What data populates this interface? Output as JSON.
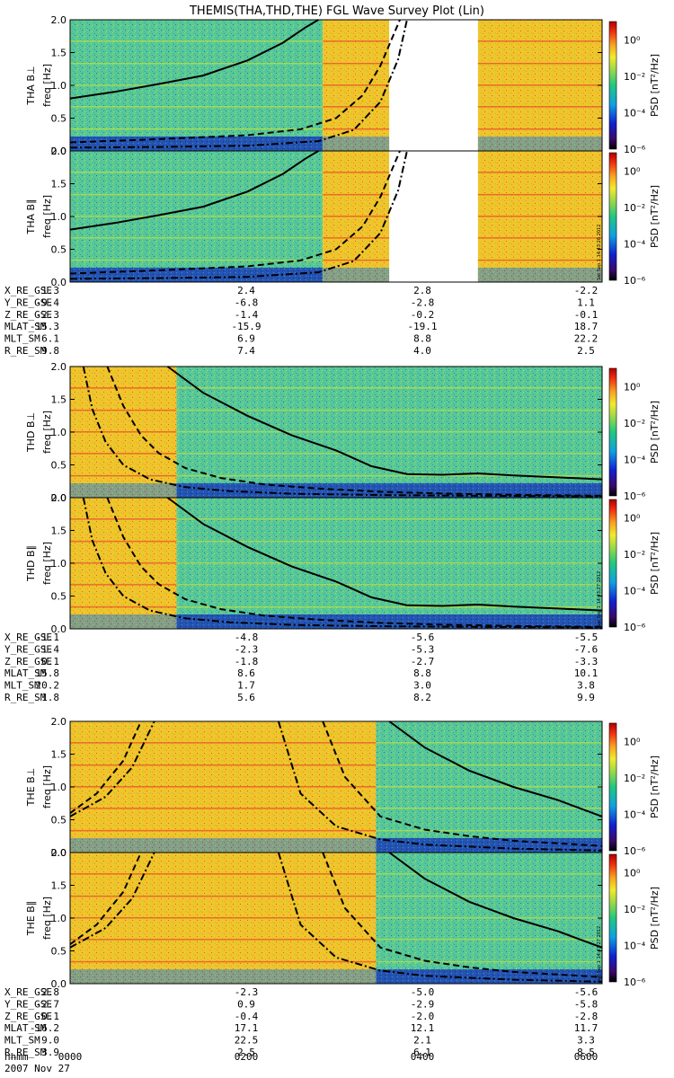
{
  "title": "THEMIS(THA,THD,THE) FGL Wave Survey Plot (Lin)",
  "colorbar": {
    "label": "PSD [nT²/Hz]",
    "ticks": [
      "10⁰",
      "10⁻²",
      "10⁻⁴",
      "10⁻⁶"
    ]
  },
  "footer": {
    "time_row_label": "hhmm",
    "times": [
      "0000",
      "0200",
      "0400",
      "0600"
    ],
    "date": "2007 Nov 27"
  },
  "chart_data": {
    "type": "heatmap",
    "x": {
      "label": "hhmm",
      "ticks": [
        "0000",
        "0200",
        "0400",
        "0600"
      ],
      "range_hours": [
        0,
        6
      ]
    },
    "y": {
      "label": "freq [Hz]",
      "range": [
        0,
        2
      ],
      "ticks": [
        "0.0",
        "0.5",
        "1.0",
        "1.5",
        "2.0"
      ]
    },
    "z": {
      "label": "PSD [nT²/Hz]",
      "scale": "log",
      "range_exp": [
        -6,
        1
      ]
    },
    "probes": [
      {
        "id": "THA",
        "panels": [
          {
            "label": "THA B⊥",
            "stamp": ""
          },
          {
            "label": "THA B∥",
            "stamp": "Sat Sep  1 14:43:26 2012"
          }
        ],
        "regions": [
          {
            "from": 0.0,
            "to": 2.85,
            "level": "green"
          },
          {
            "from": 2.85,
            "to": 3.6,
            "level": "yellow"
          },
          {
            "from": 3.6,
            "to": 4.6,
            "level": "none"
          },
          {
            "from": 4.6,
            "to": 6.0,
            "level": "yellow"
          }
        ],
        "curves": [
          {
            "style": "solid",
            "hours": [
              0.0,
              0.5,
              1.0,
              1.5,
              2.0,
              2.4,
              2.65,
              2.8
            ],
            "freq": [
              0.8,
              0.9,
              1.02,
              1.15,
              1.38,
              1.65,
              1.88,
              2.05
            ]
          },
          {
            "style": "dash",
            "hours": [
              0.0,
              1.0,
              2.0,
              2.6,
              3.0,
              3.3,
              3.5,
              3.72
            ],
            "freq": [
              0.13,
              0.18,
              0.24,
              0.33,
              0.5,
              0.85,
              1.3,
              2.05
            ]
          },
          {
            "style": "dashdot",
            "hours": [
              0.0,
              1.0,
              2.0,
              2.8,
              3.2,
              3.5,
              3.7,
              3.8
            ],
            "freq": [
              0.05,
              0.06,
              0.08,
              0.15,
              0.32,
              0.75,
              1.4,
              2.05
            ]
          }
        ],
        "ephemeris": [
          {
            "label": "X_RE_GSE",
            "values": [
              "1.3",
              "2.4",
              "2.8",
              "-2.2"
            ]
          },
          {
            "label": "Y_RE_GSE",
            "values": [
              "-9.4",
              "-6.8",
              "-2.8",
              "1.1"
            ]
          },
          {
            "label": "Z_RE_GSE",
            "values": [
              "-2.3",
              "-1.4",
              "-0.2",
              "-0.1"
            ]
          },
          {
            "label": "MLAT_SM",
            "values": [
              "-15.3",
              "-15.9",
              "-19.1",
              "18.7"
            ]
          },
          {
            "label": "MLT_SM",
            "values": [
              "6.1",
              "6.9",
              "8.8",
              "22.2"
            ]
          },
          {
            "label": "R_RE_SM",
            "values": [
              "9.8",
              "7.4",
              "4.0",
              "2.5"
            ]
          }
        ]
      },
      {
        "id": "THD",
        "panels": [
          {
            "label": "THD B⊥",
            "stamp": ""
          },
          {
            "label": "THD B∥",
            "stamp": "Sat Sep  1 14:43:27 2012"
          }
        ],
        "regions": [
          {
            "from": 0.0,
            "to": 1.2,
            "level": "yellow"
          },
          {
            "from": 1.2,
            "to": 6.0,
            "level": "green"
          }
        ],
        "curves": [
          {
            "style": "solid",
            "hours": [
              1.1,
              1.5,
              2.0,
              2.5,
              3.0,
              3.4,
              3.8,
              4.2,
              4.6,
              5.0,
              5.5,
              6.0
            ],
            "freq": [
              2.05,
              1.6,
              1.25,
              0.95,
              0.72,
              0.48,
              0.36,
              0.35,
              0.37,
              0.34,
              0.31,
              0.28
            ]
          },
          {
            "style": "dash",
            "hours": [
              0.42,
              0.6,
              0.8,
              1.0,
              1.3,
              1.7,
              2.2,
              2.8,
              3.5,
              4.3,
              5.2,
              6.0
            ],
            "freq": [
              2.05,
              1.4,
              0.95,
              0.68,
              0.45,
              0.3,
              0.2,
              0.14,
              0.09,
              0.06,
              0.04,
              0.03
            ]
          },
          {
            "style": "dashdot",
            "hours": [
              0.15,
              0.25,
              0.4,
              0.6,
              0.9,
              1.3,
              1.8,
              2.5,
              3.5,
              4.5,
              6.0
            ],
            "freq": [
              2.05,
              1.35,
              0.85,
              0.5,
              0.28,
              0.16,
              0.1,
              0.06,
              0.04,
              0.03,
              0.02
            ]
          }
        ],
        "ephemeris": [
          {
            "label": "X_RE_GSE",
            "values": [
              "-1.1",
              "-4.8",
              "-5.6",
              "-5.5"
            ]
          },
          {
            "label": "Y_RE_GSE",
            "values": [
              "1.4",
              "-2.3",
              "-5.3",
              "-7.6"
            ]
          },
          {
            "label": "Z_RE_GSE",
            "values": [
              "0.1",
              "-1.8",
              "-2.7",
              "-3.3"
            ]
          },
          {
            "label": "MLAT_SM",
            "values": [
              "15.8",
              "8.6",
              "8.8",
              "10.1"
            ]
          },
          {
            "label": "MLT_SM",
            "values": [
              "20.2",
              "1.7",
              "3.0",
              "3.8"
            ]
          },
          {
            "label": "R_RE_SM",
            "values": [
              "1.8",
              "5.6",
              "8.2",
              "9.9"
            ]
          }
        ]
      },
      {
        "id": "THE",
        "panels": [
          {
            "label": "THE B⊥",
            "stamp": ""
          },
          {
            "label": "THE B∥",
            "stamp": "Sat Sep  1 14:43:27 2012"
          }
        ],
        "regions": [
          {
            "from": 0.0,
            "to": 3.45,
            "level": "yellow"
          },
          {
            "from": 3.45,
            "to": 6.0,
            "level": "green"
          }
        ],
        "curves": [
          {
            "style": "solid",
            "hours": [
              3.6,
              4.0,
              4.5,
              5.0,
              5.5,
              6.0
            ],
            "freq": [
              2.05,
              1.6,
              1.25,
              1.0,
              0.8,
              0.55
            ]
          },
          {
            "style": "dash",
            "hours": [
              0.0,
              0.3,
              0.6,
              0.8
            ],
            "freq": [
              0.6,
              0.9,
              1.4,
              2.05
            ]
          },
          {
            "style": "dash",
            "hours": [
              2.85,
              3.1,
              3.5,
              4.0,
              4.5,
              5.0,
              5.5,
              6.0
            ],
            "freq": [
              2.05,
              1.15,
              0.55,
              0.35,
              0.25,
              0.18,
              0.14,
              0.1
            ]
          },
          {
            "style": "dashdot",
            "hours": [
              0.0,
              0.4,
              0.7,
              0.95
            ],
            "freq": [
              0.55,
              0.85,
              1.3,
              2.05
            ]
          },
          {
            "style": "dashdot",
            "hours": [
              2.35,
              2.6,
              3.0,
              3.5,
              4.0,
              5.0,
              6.0
            ],
            "freq": [
              2.05,
              0.9,
              0.4,
              0.2,
              0.12,
              0.06,
              0.03
            ]
          }
        ],
        "ephemeris": [
          {
            "label": "X_RE_GSE",
            "values": [
              "2.8",
              "-2.3",
              "-5.0",
              "-5.6"
            ]
          },
          {
            "label": "Y_RE_GSE",
            "values": [
              "-2.7",
              "0.9",
              "-2.9",
              "-5.8"
            ]
          },
          {
            "label": "Z_RE_GSE",
            "values": [
              "0.1",
              "-0.4",
              "-2.0",
              "-2.8"
            ]
          },
          {
            "label": "MLAT_SM",
            "values": [
              "-16.2",
              "17.1",
              "12.1",
              "11.7"
            ]
          },
          {
            "label": "MLT_SM",
            "values": [
              "9.0",
              "22.5",
              "2.1",
              "3.3"
            ]
          },
          {
            "label": "R_RE_SM",
            "values": [
              "3.9",
              "2.5",
              "6.1",
              "8.5"
            ]
          }
        ]
      }
    ]
  }
}
